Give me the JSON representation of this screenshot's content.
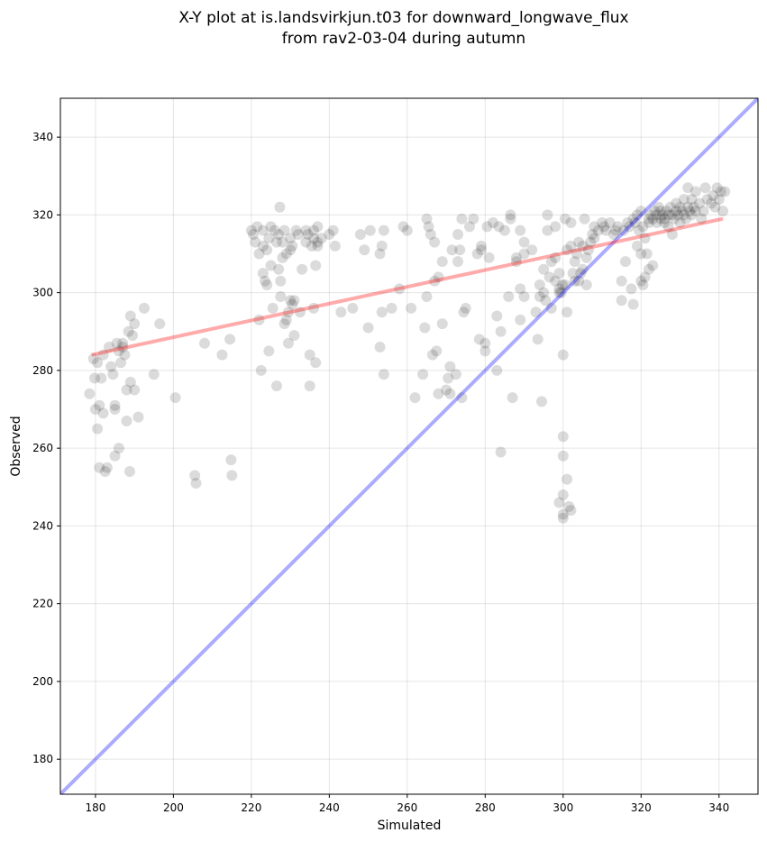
{
  "chart_data": {
    "type": "scatter",
    "title_lines": [
      "X-Y plot at is.landsvirkjun.t03 for downward_longwave_flux",
      "from rav2-03-04 during autumn"
    ],
    "xlabel": "Simulated",
    "ylabel": "Observed",
    "xlim": [
      171,
      350
    ],
    "ylim": [
      171,
      350
    ],
    "xticks": [
      180,
      200,
      220,
      240,
      260,
      280,
      300,
      320,
      340
    ],
    "yticks": [
      180,
      200,
      220,
      240,
      260,
      280,
      300,
      320,
      340
    ],
    "grid": true,
    "colors": {
      "points": "#000000",
      "identity_line": "#0000ff",
      "fit_line": "#ff0000"
    },
    "identity_line": [
      [
        171,
        171
      ],
      [
        350,
        350
      ]
    ],
    "fit_line": [
      [
        179,
        284
      ],
      [
        341,
        319
      ]
    ],
    "points": [
      [
        178.5,
        274
      ],
      [
        179.5,
        283
      ],
      [
        179.8,
        278
      ],
      [
        180,
        270
      ],
      [
        180.5,
        282
      ],
      [
        180.5,
        265
      ],
      [
        181,
        271
      ],
      [
        181,
        255
      ],
      [
        181.5,
        278
      ],
      [
        182,
        284
      ],
      [
        182,
        269
      ],
      [
        182.5,
        254
      ],
      [
        183,
        255
      ],
      [
        183.5,
        286
      ],
      [
        184,
        281
      ],
      [
        184.5,
        279
      ],
      [
        185,
        271
      ],
      [
        185,
        270
      ],
      [
        185,
        258
      ],
      [
        185.5,
        287
      ],
      [
        186,
        285
      ],
      [
        186,
        260
      ],
      [
        186.5,
        282
      ],
      [
        187,
        287
      ],
      [
        187,
        286
      ],
      [
        187.5,
        284
      ],
      [
        188,
        275
      ],
      [
        188,
        267
      ],
      [
        188.5,
        290
      ],
      [
        188.8,
        254
      ],
      [
        189,
        294
      ],
      [
        189,
        277
      ],
      [
        189.5,
        289
      ],
      [
        190,
        292
      ],
      [
        190,
        275
      ],
      [
        191,
        268
      ],
      [
        192.5,
        296
      ],
      [
        195,
        279
      ],
      [
        196.5,
        292
      ],
      [
        200.5,
        273
      ],
      [
        205.5,
        253
      ],
      [
        205.8,
        251
      ],
      [
        208,
        287
      ],
      [
        212.5,
        284
      ],
      [
        214.5,
        288
      ],
      [
        214.8,
        257
      ],
      [
        215,
        253
      ],
      [
        220,
        316
      ],
      [
        220.5,
        315
      ],
      [
        221,
        313
      ],
      [
        221.5,
        317
      ],
      [
        222,
        310
      ],
      [
        222,
        293
      ],
      [
        222.5,
        280
      ],
      [
        223,
        316
      ],
      [
        223,
        305
      ],
      [
        223,
        312
      ],
      [
        223.5,
        303
      ],
      [
        224,
        311
      ],
      [
        224,
        302
      ],
      [
        224.5,
        314
      ],
      [
        224.5,
        285
      ],
      [
        225,
        317
      ],
      [
        225,
        307
      ],
      [
        225.5,
        296
      ],
      [
        226,
        316
      ],
      [
        226.5,
        313
      ],
      [
        226.5,
        276
      ],
      [
        227,
        315
      ],
      [
        227,
        306
      ],
      [
        227.3,
        322
      ],
      [
        227.5,
        303
      ],
      [
        227.5,
        299
      ],
      [
        228,
        313
      ],
      [
        228,
        309
      ],
      [
        228.5,
        316
      ],
      [
        228.5,
        292
      ],
      [
        229,
        310
      ],
      [
        229,
        293
      ],
      [
        229.5,
        295
      ],
      [
        229.5,
        287
      ],
      [
        230,
        314
      ],
      [
        230,
        311
      ],
      [
        230,
        298
      ],
      [
        230.5,
        312
      ],
      [
        230.5,
        297
      ],
      [
        231,
        298
      ],
      [
        231,
        289
      ],
      [
        231.5,
        316
      ],
      [
        232,
        315
      ],
      [
        232.5,
        295
      ],
      [
        233,
        306
      ],
      [
        234,
        316
      ],
      [
        234,
        313
      ],
      [
        234.5,
        315
      ],
      [
        235,
        284
      ],
      [
        235,
        276
      ],
      [
        235.5,
        312
      ],
      [
        236,
        316
      ],
      [
        236,
        296
      ],
      [
        236,
        314
      ],
      [
        236.5,
        307
      ],
      [
        236.5,
        282
      ],
      [
        237,
        317
      ],
      [
        237,
        312
      ],
      [
        237,
        313
      ],
      [
        238,
        314
      ],
      [
        240,
        315
      ],
      [
        241,
        316
      ],
      [
        241.5,
        312
      ],
      [
        243,
        295
      ],
      [
        246,
        296
      ],
      [
        248,
        315
      ],
      [
        249,
        311
      ],
      [
        250,
        291
      ],
      [
        250.5,
        316
      ],
      [
        253,
        286
      ],
      [
        253,
        310
      ],
      [
        253.5,
        312
      ],
      [
        253.5,
        295
      ],
      [
        254,
        279
      ],
      [
        254,
        316
      ],
      [
        256,
        296
      ],
      [
        258,
        301
      ],
      [
        259,
        317
      ],
      [
        260,
        316
      ],
      [
        261,
        296
      ],
      [
        262,
        273
      ],
      [
        264,
        279
      ],
      [
        264.5,
        291
      ],
      [
        265,
        299
      ],
      [
        265,
        319
      ],
      [
        265.5,
        317
      ],
      [
        266,
        315
      ],
      [
        266.5,
        284
      ],
      [
        267,
        303
      ],
      [
        267,
        313
      ],
      [
        267.5,
        285
      ],
      [
        268,
        304
      ],
      [
        268,
        274
      ],
      [
        269,
        308
      ],
      [
        269,
        292
      ],
      [
        270,
        275
      ],
      [
        270.5,
        278
      ],
      [
        271,
        281
      ],
      [
        271,
        274
      ],
      [
        271.5,
        311
      ],
      [
        272.5,
        279
      ],
      [
        273,
        315
      ],
      [
        273,
        308
      ],
      [
        273.5,
        311
      ],
      [
        274,
        319
      ],
      [
        274,
        273
      ],
      [
        274.5,
        295
      ],
      [
        275,
        296
      ],
      [
        276,
        317
      ],
      [
        277,
        319
      ],
      [
        278,
        310
      ],
      [
        278.5,
        288
      ],
      [
        279,
        311
      ],
      [
        279,
        312
      ],
      [
        280,
        287
      ],
      [
        280,
        285
      ],
      [
        280.5,
        317
      ],
      [
        281,
        309
      ],
      [
        282,
        318
      ],
      [
        283,
        294
      ],
      [
        283,
        280
      ],
      [
        283.5,
        317
      ],
      [
        284,
        259
      ],
      [
        284,
        290
      ],
      [
        285,
        316
      ],
      [
        286,
        299
      ],
      [
        286.5,
        319
      ],
      [
        286.5,
        320
      ],
      [
        287,
        273
      ],
      [
        288,
        308
      ],
      [
        288,
        309
      ],
      [
        289,
        316
      ],
      [
        289,
        293
      ],
      [
        289,
        301
      ],
      [
        290,
        313
      ],
      [
        290,
        310
      ],
      [
        290,
        299
      ],
      [
        292,
        311
      ],
      [
        293,
        295
      ],
      [
        293.5,
        288
      ],
      [
        294,
        302
      ],
      [
        294,
        299
      ],
      [
        294.5,
        272
      ],
      [
        295,
        306
      ],
      [
        295,
        300
      ],
      [
        295.5,
        298
      ],
      [
        296,
        320
      ],
      [
        296,
        316
      ],
      [
        296.5,
        304
      ],
      [
        297,
        308
      ],
      [
        297,
        296
      ],
      [
        298,
        317
      ],
      [
        298,
        309
      ],
      [
        298,
        303
      ],
      [
        299,
        305
      ],
      [
        299,
        301
      ],
      [
        299,
        300
      ],
      [
        299,
        246
      ],
      [
        299.5,
        300
      ],
      [
        299.8,
        302
      ],
      [
        300,
        242
      ],
      [
        300,
        243
      ],
      [
        300,
        248
      ],
      [
        300,
        258
      ],
      [
        300,
        263
      ],
      [
        300,
        284
      ],
      [
        300.5,
        319
      ],
      [
        300.5,
        302
      ],
      [
        301,
        252
      ],
      [
        301,
        311
      ],
      [
        301,
        295
      ],
      [
        301.5,
        245
      ],
      [
        302,
        244
      ],
      [
        302,
        312
      ],
      [
        302,
        318
      ],
      [
        302.5,
        305
      ],
      [
        303,
        303
      ],
      [
        303,
        308
      ],
      [
        303.5,
        310
      ],
      [
        304,
        303
      ],
      [
        304,
        313
      ],
      [
        304.5,
        305
      ],
      [
        305,
        312
      ],
      [
        305,
        306
      ],
      [
        305.5,
        319
      ],
      [
        306,
        309
      ],
      [
        306,
        302
      ],
      [
        306.5,
        311
      ],
      [
        307,
        313
      ],
      [
        307.5,
        315
      ],
      [
        308,
        317
      ],
      [
        308,
        314
      ],
      [
        309,
        316
      ],
      [
        310,
        318
      ],
      [
        310.5,
        317
      ],
      [
        311,
        316
      ],
      [
        312,
        318
      ],
      [
        313,
        315
      ],
      [
        313.5,
        316
      ],
      [
        314,
        317
      ],
      [
        315,
        303
      ],
      [
        315,
        298
      ],
      [
        315.5,
        316
      ],
      [
        316,
        308
      ],
      [
        316.5,
        318
      ],
      [
        317,
        317
      ],
      [
        317.5,
        301
      ],
      [
        318,
        297
      ],
      [
        318,
        319
      ],
      [
        318.5,
        318
      ],
      [
        319,
        320
      ],
      [
        319,
        312
      ],
      [
        319.5,
        316
      ],
      [
        320,
        321
      ],
      [
        320,
        310
      ],
      [
        320,
        303
      ],
      [
        320.5,
        317
      ],
      [
        320.5,
        302
      ],
      [
        321,
        314
      ],
      [
        321,
        304
      ],
      [
        321.5,
        310
      ],
      [
        322,
        318
      ],
      [
        322,
        319
      ],
      [
        322,
        306
      ],
      [
        322.5,
        320
      ],
      [
        323,
        307
      ],
      [
        323,
        319
      ],
      [
        323.5,
        321
      ],
      [
        324,
        318
      ],
      [
        324,
        320
      ],
      [
        324.5,
        322
      ],
      [
        325,
        319
      ],
      [
        325,
        321
      ],
      [
        325.5,
        320
      ],
      [
        326,
        319
      ],
      [
        326,
        318
      ],
      [
        326.5,
        321
      ],
      [
        327,
        320
      ],
      [
        327,
        317
      ],
      [
        327.5,
        322
      ],
      [
        328,
        320
      ],
      [
        328,
        315
      ],
      [
        328.5,
        319
      ],
      [
        329,
        321
      ],
      [
        329,
        323
      ],
      [
        329.5,
        320
      ],
      [
        330,
        322
      ],
      [
        330,
        318
      ],
      [
        330.5,
        321
      ],
      [
        331,
        320
      ],
      [
        331,
        324
      ],
      [
        331.5,
        319
      ],
      [
        332,
        322
      ],
      [
        332,
        327
      ],
      [
        332.5,
        321
      ],
      [
        333,
        320
      ],
      [
        333,
        324
      ],
      [
        333.5,
        322
      ],
      [
        334,
        326
      ],
      [
        334,
        321
      ],
      [
        335,
        323
      ],
      [
        335.5,
        319
      ],
      [
        336,
        321
      ],
      [
        336.5,
        327
      ],
      [
        337,
        324
      ],
      [
        338,
        323
      ],
      [
        338.5,
        325
      ],
      [
        339,
        322
      ],
      [
        339.5,
        327
      ],
      [
        340,
        324
      ],
      [
        340.5,
        326
      ],
      [
        341,
        321
      ],
      [
        341.5,
        326
      ]
    ]
  }
}
